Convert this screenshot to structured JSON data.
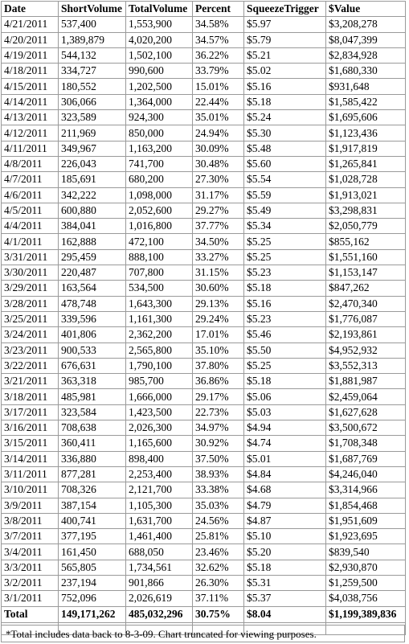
{
  "table": {
    "headers": [
      "Date",
      "ShortVolume",
      "TotalVolume",
      "Percent",
      "SqueezeTrigger",
      "$Value"
    ],
    "rows": [
      [
        "4/21/2011",
        "537,400",
        "1,553,900",
        "34.58%",
        "$5.97",
        "$3,208,278"
      ],
      [
        "4/20/2011",
        "1,389,879",
        "4,020,200",
        "34.57%",
        "$5.79",
        "$8,047,399"
      ],
      [
        "4/19/2011",
        "544,132",
        "1,502,100",
        "36.22%",
        "$5.21",
        "$2,834,928"
      ],
      [
        "4/18/2011",
        "334,727",
        "990,600",
        "33.79%",
        "$5.02",
        "$1,680,330"
      ],
      [
        "4/15/2011",
        "180,552",
        "1,202,500",
        "15.01%",
        "$5.16",
        "$931,648"
      ],
      [
        "4/14/2011",
        "306,066",
        "1,364,000",
        "22.44%",
        "$5.18",
        "$1,585,422"
      ],
      [
        "4/13/2011",
        "323,589",
        "924,300",
        "35.01%",
        "$5.24",
        "$1,695,606"
      ],
      [
        "4/12/2011",
        "211,969",
        "850,000",
        "24.94%",
        "$5.30",
        "$1,123,436"
      ],
      [
        "4/11/2011",
        "349,967",
        "1,163,200",
        "30.09%",
        "$5.48",
        "$1,917,819"
      ],
      [
        "4/8/2011",
        "226,043",
        "741,700",
        "30.48%",
        "$5.60",
        "$1,265,841"
      ],
      [
        "4/7/2011",
        "185,691",
        "680,200",
        "27.30%",
        "$5.54",
        "$1,028,728"
      ],
      [
        "4/6/2011",
        "342,222",
        "1,098,000",
        "31.17%",
        "$5.59",
        "$1,913,021"
      ],
      [
        "4/5/2011",
        "600,880",
        "2,052,600",
        "29.27%",
        "$5.49",
        "$3,298,831"
      ],
      [
        "4/4/2011",
        "384,041",
        "1,016,800",
        "37.77%",
        "$5.34",
        "$2,050,779"
      ],
      [
        "4/1/2011",
        "162,888",
        "472,100",
        "34.50%",
        "$5.25",
        "$855,162"
      ],
      [
        "3/31/2011",
        "295,459",
        "888,100",
        "33.27%",
        "$5.25",
        "$1,551,160"
      ],
      [
        "3/30/2011",
        "220,487",
        "707,800",
        "31.15%",
        "$5.23",
        "$1,153,147"
      ],
      [
        "3/29/2011",
        "163,564",
        "534,500",
        "30.60%",
        "$5.18",
        "$847,262"
      ],
      [
        "3/28/2011",
        "478,748",
        "1,643,300",
        "29.13%",
        "$5.16",
        "$2,470,340"
      ],
      [
        "3/25/2011",
        "339,596",
        "1,161,300",
        "29.24%",
        "$5.23",
        "$1,776,087"
      ],
      [
        "3/24/2011",
        "401,806",
        "2,362,200",
        "17.01%",
        "$5.46",
        "$2,193,861"
      ],
      [
        "3/23/2011",
        "900,533",
        "2,565,800",
        "35.10%",
        "$5.50",
        "$4,952,932"
      ],
      [
        "3/22/2011",
        "676,631",
        "1,790,100",
        "37.80%",
        "$5.25",
        "$3,552,313"
      ],
      [
        "3/21/2011",
        "363,318",
        "985,700",
        "36.86%",
        "$5.18",
        "$1,881,987"
      ],
      [
        "3/18/2011",
        "485,981",
        "1,666,000",
        "29.17%",
        "$5.06",
        "$2,459,064"
      ],
      [
        "3/17/2011",
        "323,584",
        "1,423,500",
        "22.73%",
        "$5.03",
        "$1,627,628"
      ],
      [
        "3/16/2011",
        "708,638",
        "2,026,300",
        "34.97%",
        "$4.94",
        "$3,500,672"
      ],
      [
        "3/15/2011",
        "360,411",
        "1,165,600",
        "30.92%",
        "$4.74",
        "$1,708,348"
      ],
      [
        "3/14/2011",
        "336,880",
        "898,400",
        "37.50%",
        "$5.01",
        "$1,687,769"
      ],
      [
        "3/11/2011",
        "877,281",
        "2,253,400",
        "38.93%",
        "$4.84",
        "$4,246,040"
      ],
      [
        "3/10/2011",
        "708,326",
        "2,121,700",
        "33.38%",
        "$4.68",
        "$3,314,966"
      ],
      [
        "3/9/2011",
        "387,154",
        "1,105,300",
        "35.03%",
        "$4.79",
        "$1,854,468"
      ],
      [
        "3/8/2011",
        "400,741",
        "1,631,700",
        "24.56%",
        "$4.87",
        "$1,951,609"
      ],
      [
        "3/7/2011",
        "377,195",
        "1,461,400",
        "25.81%",
        "$5.10",
        "$1,923,695"
      ],
      [
        "3/4/2011",
        "161,450",
        "688,050",
        "23.46%",
        "$5.20",
        "$839,540"
      ],
      [
        "3/3/2011",
        "565,805",
        "1,734,561",
        "32.62%",
        "$5.18",
        "$2,930,870"
      ],
      [
        "3/2/2011",
        "237,194",
        "901,866",
        "26.30%",
        "$5.31",
        "$1,259,500"
      ],
      [
        "3/1/2011",
        "752,096",
        "2,026,619",
        "37.11%",
        "$5.37",
        "$4,038,756"
      ]
    ],
    "total": [
      "Total",
      "149,171,262",
      "485,032,296",
      "30.75%",
      "$8.04",
      "$1,199,389,836"
    ]
  },
  "footnote": "*Total includes data back to 8-3-09. Chart truncated for viewing purposes."
}
